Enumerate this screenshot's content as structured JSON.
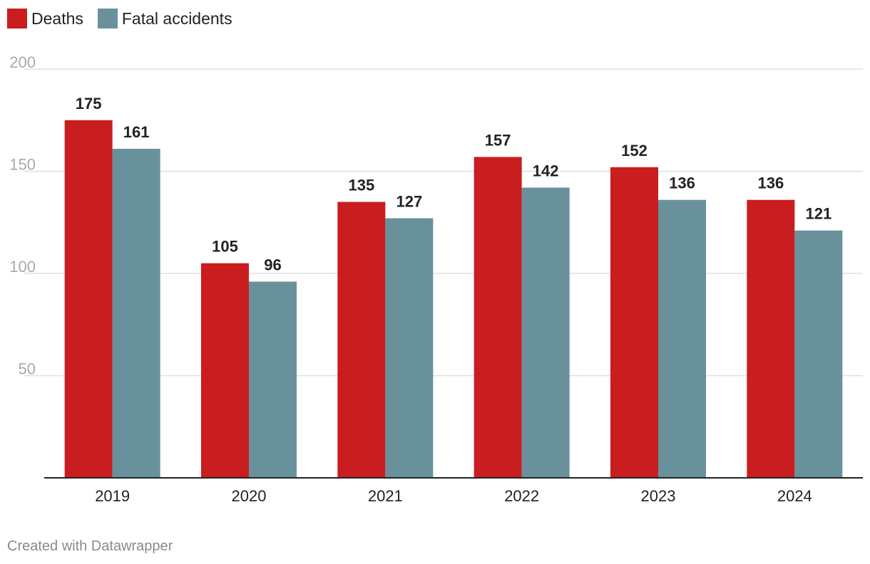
{
  "chart_data": {
    "type": "bar",
    "categories": [
      "2019",
      "2020",
      "2021",
      "2022",
      "2023",
      "2024"
    ],
    "series": [
      {
        "name": "Deaths",
        "values": [
          175,
          105,
          135,
          157,
          152,
          136
        ],
        "color": "#c91d1f"
      },
      {
        "name": "Fatal accidents",
        "values": [
          161,
          96,
          127,
          142,
          136,
          121
        ],
        "color": "#68919c"
      }
    ],
    "yticks": [
      50,
      100,
      150,
      200
    ],
    "ylim": [
      0,
      200
    ],
    "grid": true,
    "legend_position": "top-left"
  },
  "footer": "Created with Datawrapper"
}
